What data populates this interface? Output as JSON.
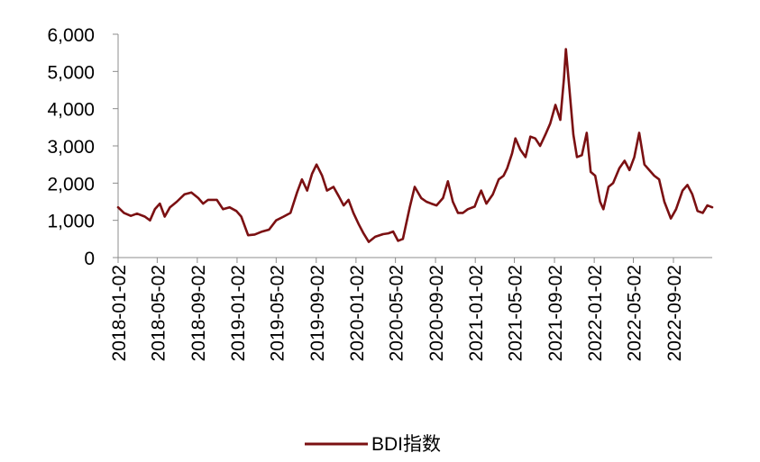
{
  "chart_data": {
    "type": "line",
    "title": "",
    "xlabel": "",
    "ylabel": "",
    "ylim": [
      0,
      6000
    ],
    "yticks": [
      0,
      1000,
      2000,
      3000,
      4000,
      5000,
      6000
    ],
    "ytick_labels": [
      "0",
      "1,000",
      "2,000",
      "3,000",
      "4,000",
      "5,000",
      "6,000"
    ],
    "xlim": [
      "2018-01-02",
      "2022-12-30"
    ],
    "xtick_labels": [
      "2018-01-02",
      "2018-05-02",
      "2018-09-02",
      "2019-01-02",
      "2019-05-02",
      "2019-09-02",
      "2020-01-02",
      "2020-05-02",
      "2020-09-02",
      "2021-01-02",
      "2021-05-02",
      "2021-09-02",
      "2022-01-02",
      "2022-05-02",
      "2022-09-02"
    ],
    "grid": false,
    "legend": "bottom",
    "series": [
      {
        "name": "BDI指数",
        "color": "#7b1012",
        "points": [
          [
            "2018-01-02",
            1350
          ],
          [
            "2018-01-20",
            1200
          ],
          [
            "2018-02-10",
            1120
          ],
          [
            "2018-03-01",
            1180
          ],
          [
            "2018-03-25",
            1100
          ],
          [
            "2018-04-10",
            1000
          ],
          [
            "2018-04-25",
            1300
          ],
          [
            "2018-05-10",
            1450
          ],
          [
            "2018-05-25",
            1100
          ],
          [
            "2018-06-10",
            1350
          ],
          [
            "2018-07-01",
            1500
          ],
          [
            "2018-07-25",
            1700
          ],
          [
            "2018-08-15",
            1750
          ],
          [
            "2018-09-05",
            1600
          ],
          [
            "2018-09-20",
            1450
          ],
          [
            "2018-10-05",
            1550
          ],
          [
            "2018-11-01",
            1550
          ],
          [
            "2018-11-20",
            1300
          ],
          [
            "2018-12-10",
            1350
          ],
          [
            "2018-12-31",
            1250
          ],
          [
            "2019-01-15",
            1100
          ],
          [
            "2019-02-05",
            600
          ],
          [
            "2019-02-25",
            620
          ],
          [
            "2019-03-20",
            700
          ],
          [
            "2019-04-10",
            750
          ],
          [
            "2019-05-02",
            1000
          ],
          [
            "2019-05-25",
            1100
          ],
          [
            "2019-06-15",
            1200
          ],
          [
            "2019-07-05",
            1750
          ],
          [
            "2019-07-20",
            2100
          ],
          [
            "2019-08-05",
            1800
          ],
          [
            "2019-08-20",
            2250
          ],
          [
            "2019-09-03",
            2500
          ],
          [
            "2019-09-20",
            2200
          ],
          [
            "2019-10-05",
            1800
          ],
          [
            "2019-10-25",
            1900
          ],
          [
            "2019-11-10",
            1650
          ],
          [
            "2019-11-25",
            1400
          ],
          [
            "2019-12-10",
            1550
          ],
          [
            "2019-12-25",
            1200
          ],
          [
            "2020-01-10",
            900
          ],
          [
            "2020-01-25",
            650
          ],
          [
            "2020-02-10",
            420
          ],
          [
            "2020-03-01",
            560
          ],
          [
            "2020-03-25",
            630
          ],
          [
            "2020-04-10",
            650
          ],
          [
            "2020-04-25",
            700
          ],
          [
            "2020-05-10",
            450
          ],
          [
            "2020-05-25",
            500
          ],
          [
            "2020-06-15",
            1350
          ],
          [
            "2020-06-30",
            1900
          ],
          [
            "2020-07-20",
            1600
          ],
          [
            "2020-08-05",
            1500
          ],
          [
            "2020-08-20",
            1450
          ],
          [
            "2020-09-05",
            1400
          ],
          [
            "2020-09-25",
            1600
          ],
          [
            "2020-10-10",
            2050
          ],
          [
            "2020-10-25",
            1500
          ],
          [
            "2020-11-10",
            1200
          ],
          [
            "2020-11-25",
            1200
          ],
          [
            "2020-12-10",
            1300
          ],
          [
            "2020-12-31",
            1370
          ],
          [
            "2021-01-10",
            1600
          ],
          [
            "2021-01-20",
            1800
          ],
          [
            "2021-02-05",
            1450
          ],
          [
            "2021-02-25",
            1700
          ],
          [
            "2021-03-15",
            2100
          ],
          [
            "2021-03-30",
            2200
          ],
          [
            "2021-04-10",
            2400
          ],
          [
            "2021-04-25",
            2800
          ],
          [
            "2021-05-05",
            3200
          ],
          [
            "2021-05-20",
            2900
          ],
          [
            "2021-06-05",
            2700
          ],
          [
            "2021-06-20",
            3250
          ],
          [
            "2021-07-05",
            3200
          ],
          [
            "2021-07-20",
            3000
          ],
          [
            "2021-08-05",
            3300
          ],
          [
            "2021-08-20",
            3600
          ],
          [
            "2021-09-05",
            4100
          ],
          [
            "2021-09-20",
            3700
          ],
          [
            "2021-10-01",
            4800
          ],
          [
            "2021-10-07",
            5600
          ],
          [
            "2021-10-18",
            4500
          ],
          [
            "2021-10-30",
            3300
          ],
          [
            "2021-11-10",
            2700
          ],
          [
            "2021-11-25",
            2750
          ],
          [
            "2021-12-10",
            3350
          ],
          [
            "2021-12-22",
            2300
          ],
          [
            "2022-01-05",
            2200
          ],
          [
            "2022-01-20",
            1500
          ],
          [
            "2022-01-30",
            1300
          ],
          [
            "2022-02-15",
            1900
          ],
          [
            "2022-03-01",
            2000
          ],
          [
            "2022-03-20",
            2400
          ],
          [
            "2022-04-05",
            2600
          ],
          [
            "2022-04-20",
            2350
          ],
          [
            "2022-05-05",
            2700
          ],
          [
            "2022-05-20",
            3350
          ],
          [
            "2022-06-05",
            2500
          ],
          [
            "2022-06-20",
            2350
          ],
          [
            "2022-07-05",
            2200
          ],
          [
            "2022-07-20",
            2100
          ],
          [
            "2022-08-05",
            1500
          ],
          [
            "2022-08-25",
            1050
          ],
          [
            "2022-09-10",
            1300
          ],
          [
            "2022-09-30",
            1800
          ],
          [
            "2022-10-15",
            1950
          ],
          [
            "2022-10-30",
            1700
          ],
          [
            "2022-11-15",
            1250
          ],
          [
            "2022-12-01",
            1200
          ],
          [
            "2022-12-15",
            1400
          ],
          [
            "2022-12-30",
            1350
          ]
        ]
      }
    ]
  }
}
